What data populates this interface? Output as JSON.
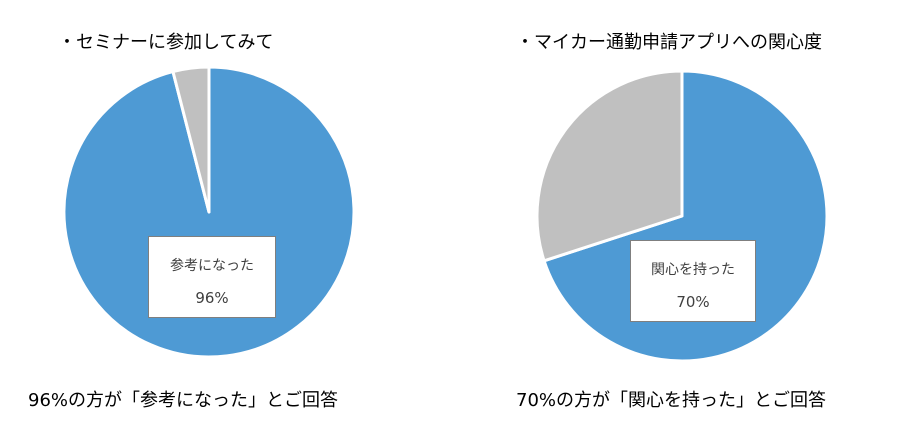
{
  "colors": {
    "primary": "#4e9ad4",
    "secondary": "#c0c0c0",
    "edge": "#ffffff"
  },
  "chart_data": [
    {
      "type": "pie",
      "title": "・セミナーに参加してみて",
      "slices": [
        {
          "name": "参考になった",
          "value": 96
        },
        {
          "name": "",
          "value": 4
        }
      ],
      "data_label": {
        "name": "参考になった",
        "value": "96%"
      },
      "caption": "96%の方が「参考になった」とご回答"
    },
    {
      "type": "pie",
      "title": "・マイカー通勤申請アプリへの関心度",
      "slices": [
        {
          "name": "関心を持った",
          "value": 70
        },
        {
          "name": "",
          "value": 30
        }
      ],
      "data_label": {
        "name": "関心を持った",
        "value": "70%"
      },
      "caption": "70%の方が「関心を持った」とご回答"
    }
  ]
}
